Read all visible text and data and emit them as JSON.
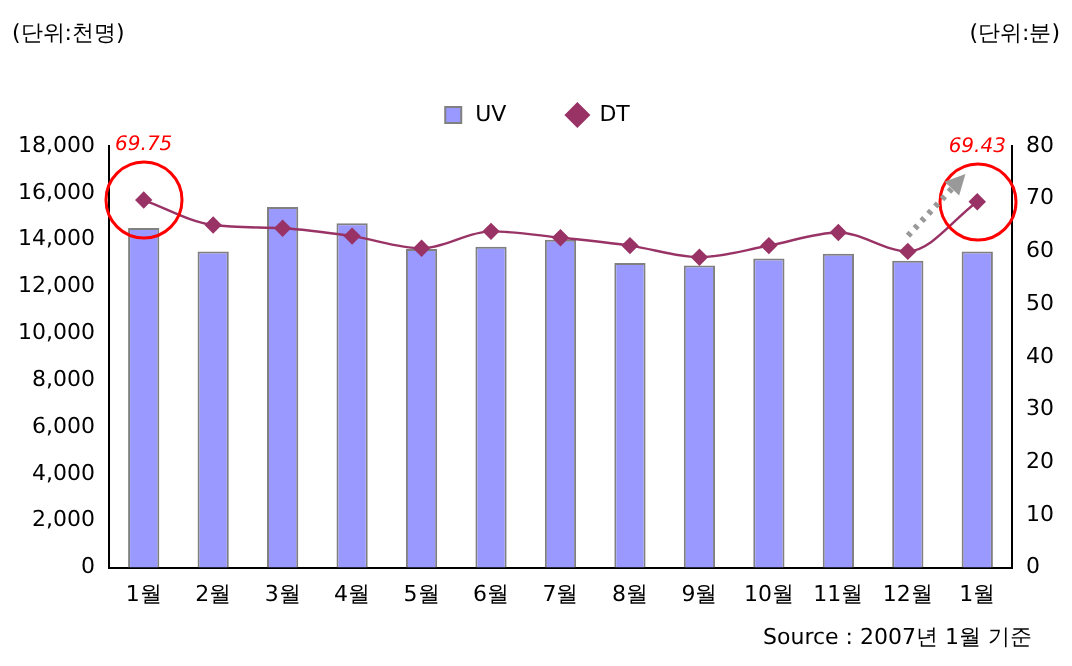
{
  "chart_data": {
    "type": "bar",
    "ylabel": "(단위:천명)",
    "y2label": "(단위:분)",
    "categories": [
      "1월",
      "2월",
      "3월",
      "4월",
      "5월",
      "6월",
      "7월",
      "8월",
      "9월",
      "10월",
      "11월",
      "12월",
      "1월"
    ],
    "series": [
      {
        "name": "UV",
        "color": "#9999ff",
        "values": [
          14500,
          13500,
          15400,
          14700,
          13600,
          13700,
          14000,
          13000,
          12900,
          13200,
          13400,
          13100,
          13500
        ]
      },
      {
        "name": "DT",
        "type": "line",
        "axis": "y2",
        "color": "#993366",
        "marker": "diamond",
        "values": [
          69.75,
          65.0,
          64.4,
          62.9,
          60.6,
          63.8,
          62.6,
          61.1,
          58.9,
          61.1,
          63.6,
          60.0,
          69.43
        ],
        "value_labels": [
          "69.75",
          null,
          null,
          null,
          null,
          null,
          null,
          null,
          null,
          null,
          null,
          null,
          "69.43"
        ]
      }
    ],
    "ylim": [
      0,
      18000
    ],
    "yticks": [
      0,
      {
        "value": 2000,
        "label": "2,000"
      },
      {
        "value": 4000,
        "label": "4,000"
      },
      {
        "value": 6000,
        "label": "6,000"
      },
      {
        "value": 8000,
        "label": "8,000"
      },
      {
        "value": 10000,
        "label": "10,000"
      },
      {
        "value": 12000,
        "label": "12,000"
      },
      {
        "value": 14000,
        "label": "14,000"
      },
      {
        "value": 16000,
        "label": "16,000"
      },
      {
        "value": 18000,
        "label": "18,000"
      }
    ],
    "y2lim": [
      0,
      80
    ],
    "y2ticks": [
      0,
      10,
      20,
      30,
      40,
      50,
      60,
      70,
      80
    ],
    "grid": false,
    "legend": "top",
    "annotations": [
      "Source : 2007년 1월 기준"
    ]
  }
}
